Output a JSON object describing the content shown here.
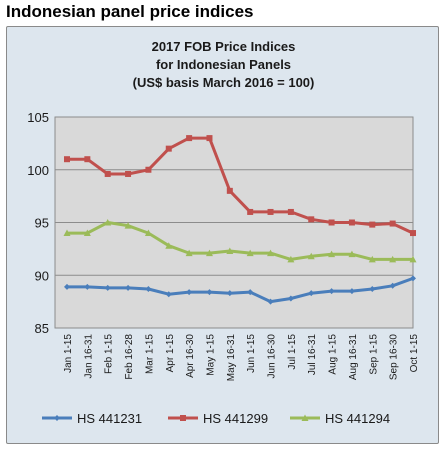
{
  "heading": "Indonesian panel price indices",
  "chart_data": {
    "type": "line",
    "title": "2017 FOB Price Indices",
    "subtitle": "for Indonesian Panels",
    "subtitle2": "(US$ basis March 2016 = 100)",
    "xlabel": "",
    "ylabel": "",
    "ylim": [
      85,
      105
    ],
    "yticks": [
      85,
      90,
      95,
      100,
      105
    ],
    "grid": true,
    "legend_position": "bottom",
    "categories": [
      "Jan 1-15",
      "Jan 16-31",
      "Feb 1-15",
      "Feb 16-28",
      "Mar 1-15",
      "Apr 1-15",
      "Apr 16-30",
      "May 1-15",
      "May 16-31",
      "Jun 1-15",
      "Jun 16-30",
      "Jul 1-15",
      "Jul 16-31",
      "Aug 1-15",
      "Aug 16-31",
      "Sep 1-15",
      "Sep 16-30",
      "Oct 1-15"
    ],
    "series": [
      {
        "name": "HS 441231",
        "color": "#4a7ebb",
        "values": [
          88.9,
          88.9,
          88.8,
          88.8,
          88.7,
          88.2,
          88.4,
          88.4,
          88.3,
          88.4,
          87.5,
          87.8,
          88.3,
          88.5,
          88.5,
          88.7,
          89.0,
          89.7
        ]
      },
      {
        "name": "HS 441299",
        "color": "#c0504d",
        "values": [
          101.0,
          101.0,
          99.6,
          99.6,
          100.0,
          102.0,
          103.0,
          103.0,
          98.0,
          96.0,
          96.0,
          96.0,
          95.3,
          95.0,
          95.0,
          94.8,
          94.9,
          94.0
        ]
      },
      {
        "name": "HS 441294",
        "color": "#9bbb59",
        "values": [
          94.0,
          94.0,
          95.0,
          94.7,
          94.0,
          92.8,
          92.1,
          92.1,
          92.3,
          92.1,
          92.1,
          91.5,
          91.8,
          92.0,
          92.0,
          91.5,
          91.5,
          91.5
        ]
      }
    ]
  }
}
